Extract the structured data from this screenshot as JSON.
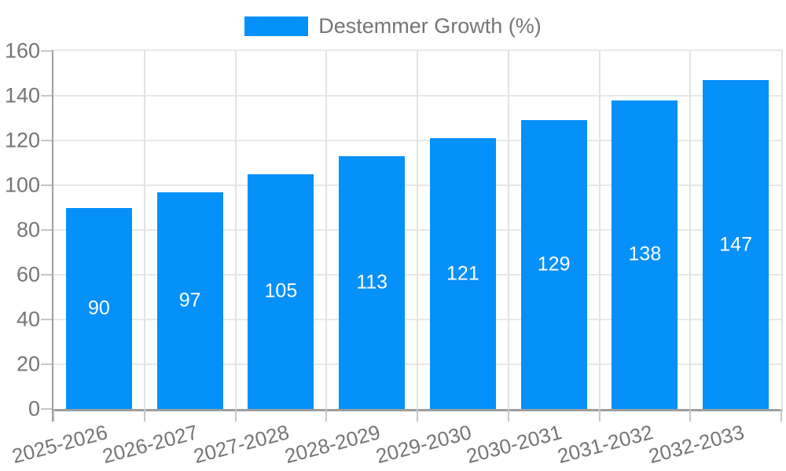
{
  "legend": {
    "label": "Destemmer Growth (%)"
  },
  "chart_data": {
    "type": "bar",
    "title": "",
    "series_name": "Destemmer Growth (%)",
    "categories": [
      "2025-2026",
      "2026-2027",
      "2027-2028",
      "2028-2029",
      "2029-2030",
      "2030-2031",
      "2031-2032",
      "2032-2033"
    ],
    "values": [
      90,
      97,
      105,
      113,
      121,
      129,
      138,
      147
    ],
    "xlabel": "",
    "ylabel": "",
    "ylim": [
      0,
      160
    ],
    "ytick_step": 20,
    "yticks": [
      0,
      20,
      40,
      60,
      80,
      100,
      120,
      140,
      160
    ],
    "grid": true,
    "legend_position": "top",
    "value_labels_inside_bars": true,
    "x_label_rotation_deg": -15
  },
  "colors": {
    "background": "#ffffff",
    "bar": "#0690fa",
    "axis_line": "#9e9e9e",
    "gridline": "#e8e8e8",
    "tick": "#c6c6c6",
    "tick_label_text": "#757575",
    "legend_text": "#757575",
    "bar_value_text": "#ffffff"
  }
}
